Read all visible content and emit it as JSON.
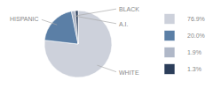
{
  "chart_data": {
    "type": "pie",
    "categories": [
      "WHITE",
      "HISPANIC",
      "A.I.",
      "BLACK"
    ],
    "values": [
      76.9,
      20.0,
      1.9,
      1.3
    ],
    "value_labels": [
      "76.9%",
      "20.0%",
      "1.9%",
      "1.3%"
    ],
    "colors": [
      "#cdd1db",
      "#5b7fa6",
      "#b0b8c8",
      "#2c3e5a"
    ],
    "legend": "right"
  }
}
